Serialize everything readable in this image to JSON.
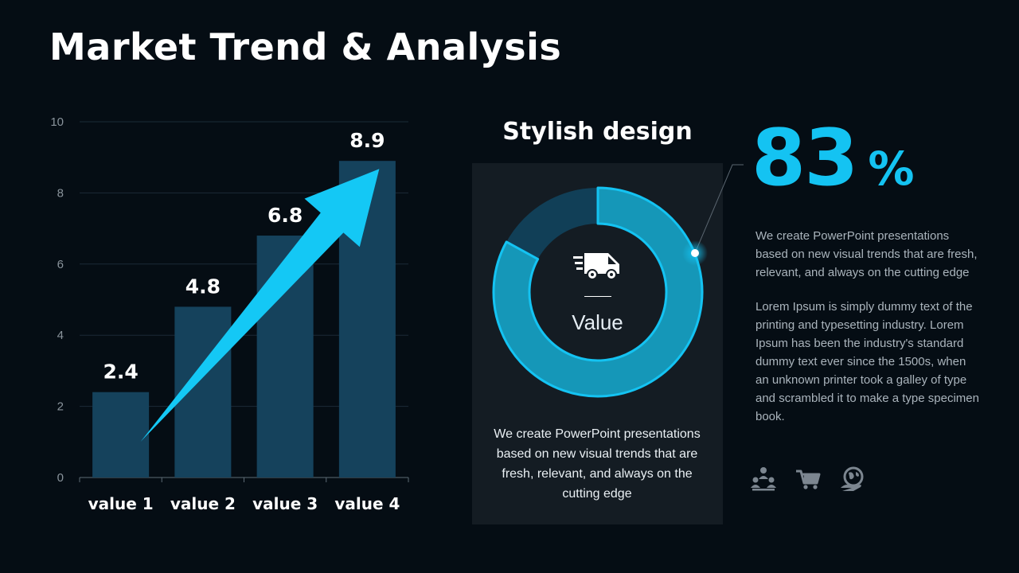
{
  "title": "Market Trend & Analysis",
  "chart_data": {
    "type": "bar",
    "categories": [
      "value 1",
      "value 2",
      "value 3",
      "value 4"
    ],
    "values": [
      2.4,
      4.8,
      6.8,
      8.9
    ],
    "data_labels": [
      "2.4",
      "4.8",
      "6.8",
      "8.9"
    ],
    "ylim": [
      0,
      10
    ],
    "yticks": [
      0,
      2,
      4,
      6,
      8,
      10
    ],
    "ytick_labels": [
      "0",
      "2",
      "4",
      "6",
      "8",
      "10"
    ],
    "grid": true,
    "bar_color": "#15425c",
    "arrow_color": "#14c8f5"
  },
  "donut": {
    "heading": "Stylish design",
    "percent": 83,
    "center_label": "Value",
    "text": "We create PowerPoint presentations based on new visual trends that are fresh, relevant, and always on the cutting edge",
    "fill_color": "#1597b8",
    "track_color": "#113f57",
    "accent": "#14c3f2",
    "icon": "delivery-truck-icon"
  },
  "stat": {
    "value": "83",
    "unit": "%",
    "desc1": "We create PowerPoint presentations based on new visual trends that are fresh, relevant, and always on the cutting edge",
    "desc2": "Lorem Ipsum is simply dummy text of the printing and typesetting industry. Lorem Ipsum has been the industry's standard dummy text ever since the 1500s, when an unknown printer took a galley of type and scrambled it to make a type specimen book.",
    "icons": [
      "team-icon",
      "shopping-cart-icon",
      "globe-hand-icon"
    ],
    "icon_color": "#7c8690"
  }
}
